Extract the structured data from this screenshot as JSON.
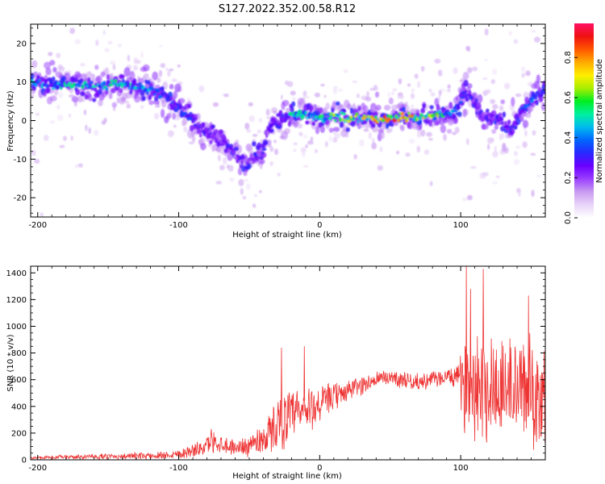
{
  "title": "S127.2022.352.00.58.R12",
  "colors": {
    "snr_line": "#ee3333",
    "axis": "#000000",
    "background": "#ffffff"
  },
  "colormap": [
    "#ffffff",
    "#e8d4f8",
    "#c99cf0",
    "#9b40ff",
    "#6a00ff",
    "#2828ff",
    "#0066ff",
    "#00bbee",
    "#00f0a0",
    "#00ee22",
    "#aaee00",
    "#ffee00",
    "#ffaa00",
    "#ff5500",
    "#ee1111",
    "#ff1166"
  ],
  "chart_data": [
    {
      "type": "heatmap",
      "xlabel": "Height of straight line (km)",
      "ylabel": "Frequency (Hz)",
      "xlim": [
        -205,
        160
      ],
      "ylim": [
        -25,
        25
      ],
      "xticks": [
        -200,
        -100,
        0,
        100
      ],
      "xtick_labels": [
        "-200",
        "-100",
        "0",
        "100"
      ],
      "yticks": [
        -20,
        -10,
        0,
        10,
        20
      ],
      "ytick_labels": [
        "-20",
        "-10",
        "0",
        "10",
        "20"
      ],
      "colorbar": {
        "label": "Normalized spectral amplitude",
        "range": [
          0,
          0.97
        ],
        "ticks": [
          0.0,
          0.2,
          0.4,
          0.6,
          0.8
        ],
        "tick_labels": [
          "0.0",
          "0.2",
          "0.4",
          "0.6",
          "0.8"
        ]
      },
      "ridge": {
        "x": [
          -205,
          -190,
          -175,
          -160,
          -145,
          -130,
          -118,
          -108,
          -98,
          -90,
          -80,
          -70,
          -60,
          -52,
          -45,
          -40,
          -36,
          -32,
          -27,
          -22,
          -20,
          -12,
          0,
          10,
          20,
          40,
          60,
          80,
          90,
          98,
          103,
          108,
          113,
          120,
          127,
          135,
          143,
          150,
          160
        ],
        "y": [
          10,
          9.5,
          9,
          9,
          9.5,
          9,
          8,
          6,
          3,
          0,
          -3,
          -5,
          -9,
          -12,
          -9,
          -8,
          -2,
          -1,
          0,
          1,
          2,
          1.5,
          1,
          1,
          0.5,
          0.5,
          0.8,
          1,
          2,
          2.5,
          8,
          5,
          2,
          0,
          1,
          -3,
          2,
          5,
          8
        ],
        "amp": [
          0.45,
          0.5,
          0.55,
          0.5,
          0.55,
          0.55,
          0.4,
          0.35,
          0.35,
          0.35,
          0.3,
          0.3,
          0.25,
          0.25,
          0.3,
          0.3,
          0.3,
          0.35,
          0.35,
          0.5,
          0.55,
          0.55,
          0.6,
          0.65,
          0.7,
          0.8,
          0.9,
          0.7,
          0.5,
          0.45,
          0.3,
          0.35,
          0.3,
          0.3,
          0.3,
          0.3,
          0.35,
          0.4,
          0.45
        ]
      }
    },
    {
      "type": "line",
      "xlabel": "Height of straight line (km)",
      "ylabel": "SNR (10 * v/v)",
      "xlim": [
        -205,
        160
      ],
      "ylim": [
        0,
        1450
      ],
      "xticks": [
        -200,
        -100,
        0,
        100
      ],
      "xtick_labels": [
        "-200",
        "-100",
        "0",
        "100"
      ],
      "yticks": [
        0,
        200,
        400,
        600,
        800,
        1000,
        1200,
        1400
      ],
      "ytick_labels": [
        "0",
        "200",
        "400",
        "600",
        "800",
        "1000",
        "1200",
        "1400"
      ],
      "envelope": {
        "x": [
          -205,
          -180,
          -150,
          -120,
          -100,
          -85,
          -75,
          -60,
          -50,
          -40,
          -35,
          -30,
          -20,
          -10,
          0,
          10,
          20,
          30,
          40,
          50,
          60,
          70,
          80,
          90,
          98,
          102,
          110,
          120,
          130,
          140,
          150,
          160
        ],
        "mean": [
          15,
          20,
          25,
          30,
          45,
          80,
          140,
          90,
          110,
          160,
          200,
          280,
          320,
          360,
          420,
          470,
          520,
          560,
          600,
          620,
          600,
          580,
          600,
          620,
          620,
          560,
          600,
          560,
          540,
          530,
          520,
          500
        ],
        "spread": [
          10,
          15,
          20,
          25,
          35,
          55,
          80,
          50,
          80,
          120,
          150,
          190,
          200,
          180,
          140,
          100,
          80,
          70,
          60,
          60,
          60,
          60,
          60,
          60,
          80,
          300,
          420,
          420,
          400,
          380,
          380,
          380
        ]
      },
      "peaks": [
        {
          "x": -77,
          "y": 230
        },
        {
          "x": -27,
          "y": 840
        },
        {
          "x": -11,
          "y": 850
        },
        {
          "x": 104,
          "y": 1450
        },
        {
          "x": 107,
          "y": 1280
        },
        {
          "x": 116,
          "y": 1430
        },
        {
          "x": 148,
          "y": 1230
        }
      ]
    }
  ]
}
